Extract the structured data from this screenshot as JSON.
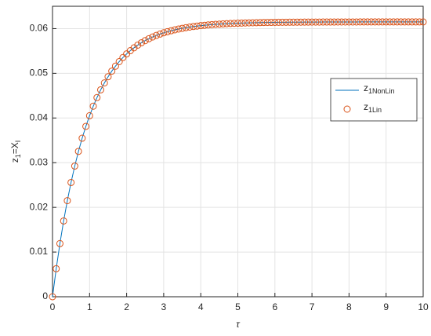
{
  "chart_data": {
    "type": "line",
    "xlabel": "τ",
    "ylabel": "z1=XI",
    "x": [
      0,
      0.1,
      0.2,
      0.3,
      0.4,
      0.5,
      0.6,
      0.7,
      0.8,
      0.9,
      1,
      1.1,
      1.2,
      1.3,
      1.4,
      1.5,
      1.6,
      1.7,
      1.8,
      1.9,
      2,
      2.1,
      2.2,
      2.3,
      2.4,
      2.5,
      2.6,
      2.7,
      2.8,
      2.9,
      3,
      3.1,
      3.2,
      3.3,
      3.4,
      3.5,
      3.6,
      3.7,
      3.8,
      3.9,
      4,
      4.1,
      4.2,
      4.3,
      4.4,
      4.5,
      4.6,
      4.7,
      4.8,
      4.9,
      5,
      5.1,
      5.2,
      5.3,
      5.4,
      5.5,
      5.6,
      5.7,
      5.8,
      5.9,
      6,
      6.1,
      6.2,
      6.3,
      6.4,
      6.5,
      6.6,
      6.7,
      6.8,
      6.9,
      7,
      7.1,
      7.2,
      7.3,
      7.4,
      7.5,
      7.6,
      7.7,
      7.8,
      7.9,
      8,
      8.1,
      8.2,
      8.3,
      8.4,
      8.5,
      8.6,
      8.7,
      8.8,
      8.9,
      9,
      9.1,
      9.2,
      9.3,
      9.4,
      9.5,
      9.6,
      9.7,
      9.8,
      9.9,
      10
    ],
    "series": [
      {
        "name": "z1NonLin",
        "style": "line",
        "color": "#0072bd",
        "values": [
          0,
          0.00627,
          0.0119,
          0.01696,
          0.0215,
          0.02557,
          0.02924,
          0.03253,
          0.03548,
          0.03813,
          0.04051,
          0.04265,
          0.04457,
          0.0463,
          0.04785,
          0.04924,
          0.05049,
          0.05161,
          0.05262,
          0.05353,
          0.05434,
          0.05507,
          0.05572,
          0.05631,
          0.05684,
          0.05732,
          0.05774,
          0.05813,
          0.05847,
          0.05878,
          0.05906,
          0.05931,
          0.05953,
          0.05973,
          0.05991,
          0.06007,
          0.06022,
          0.06035,
          0.06047,
          0.06057,
          0.06067,
          0.06075,
          0.06083,
          0.0609,
          0.06096,
          0.06101,
          0.06106,
          0.06111,
          0.06115,
          0.06118,
          0.06122,
          0.06124,
          0.06127,
          0.06129,
          0.06131,
          0.06133,
          0.06135,
          0.06137,
          0.06138,
          0.06139,
          0.0614,
          0.06141,
          0.06142,
          0.06143,
          0.06144,
          0.06144,
          0.06145,
          0.06145,
          0.06146,
          0.06146,
          0.06147,
          0.06147,
          0.06147,
          0.06148,
          0.06148,
          0.06148,
          0.06148,
          0.06149,
          0.06149,
          0.06149,
          0.06149,
          0.06149,
          0.06149,
          0.0615,
          0.0615,
          0.0615,
          0.0615,
          0.0615,
          0.0615,
          0.0615,
          0.0615,
          0.0615,
          0.0615,
          0.0615,
          0.0615,
          0.0615,
          0.0615,
          0.0615,
          0.0615,
          0.0615,
          0.0615
        ]
      },
      {
        "name": "z1Lin",
        "style": "marker",
        "color": "#d95319",
        "values": [
          0,
          0.00627,
          0.0119,
          0.01696,
          0.0215,
          0.02557,
          0.02924,
          0.03253,
          0.03548,
          0.03813,
          0.04051,
          0.04265,
          0.04457,
          0.0463,
          0.04785,
          0.04924,
          0.05049,
          0.05161,
          0.05262,
          0.05353,
          0.05434,
          0.05507,
          0.05572,
          0.05631,
          0.05684,
          0.05732,
          0.05774,
          0.05813,
          0.05847,
          0.05878,
          0.05906,
          0.05931,
          0.05953,
          0.05973,
          0.05991,
          0.06007,
          0.06022,
          0.06035,
          0.06047,
          0.06057,
          0.06067,
          0.06075,
          0.06083,
          0.0609,
          0.06096,
          0.06101,
          0.06106,
          0.06111,
          0.06115,
          0.06118,
          0.06122,
          0.06124,
          0.06127,
          0.06129,
          0.06131,
          0.06133,
          0.06135,
          0.06137,
          0.06138,
          0.06139,
          0.0614,
          0.06141,
          0.06142,
          0.06143,
          0.06144,
          0.06144,
          0.06145,
          0.06145,
          0.06146,
          0.06146,
          0.06147,
          0.06147,
          0.06147,
          0.06148,
          0.06148,
          0.06148,
          0.06148,
          0.06149,
          0.06149,
          0.06149,
          0.06149,
          0.06149,
          0.06149,
          0.0615,
          0.0615,
          0.0615,
          0.0615,
          0.0615,
          0.0615,
          0.0615,
          0.0615,
          0.0615,
          0.0615,
          0.0615,
          0.0615,
          0.0615,
          0.0615,
          0.0615,
          0.0615,
          0.0615,
          0.0615
        ]
      }
    ],
    "xlim": [
      0,
      10
    ],
    "xticks": [
      0,
      1,
      2,
      3,
      4,
      5,
      6,
      7,
      8,
      9,
      10
    ],
    "ylim": [
      0,
      0.065
    ],
    "yticks": [
      0,
      0.01,
      0.02,
      0.03,
      0.04,
      0.05,
      0.06
    ],
    "grid": true,
    "legend": "east"
  }
}
